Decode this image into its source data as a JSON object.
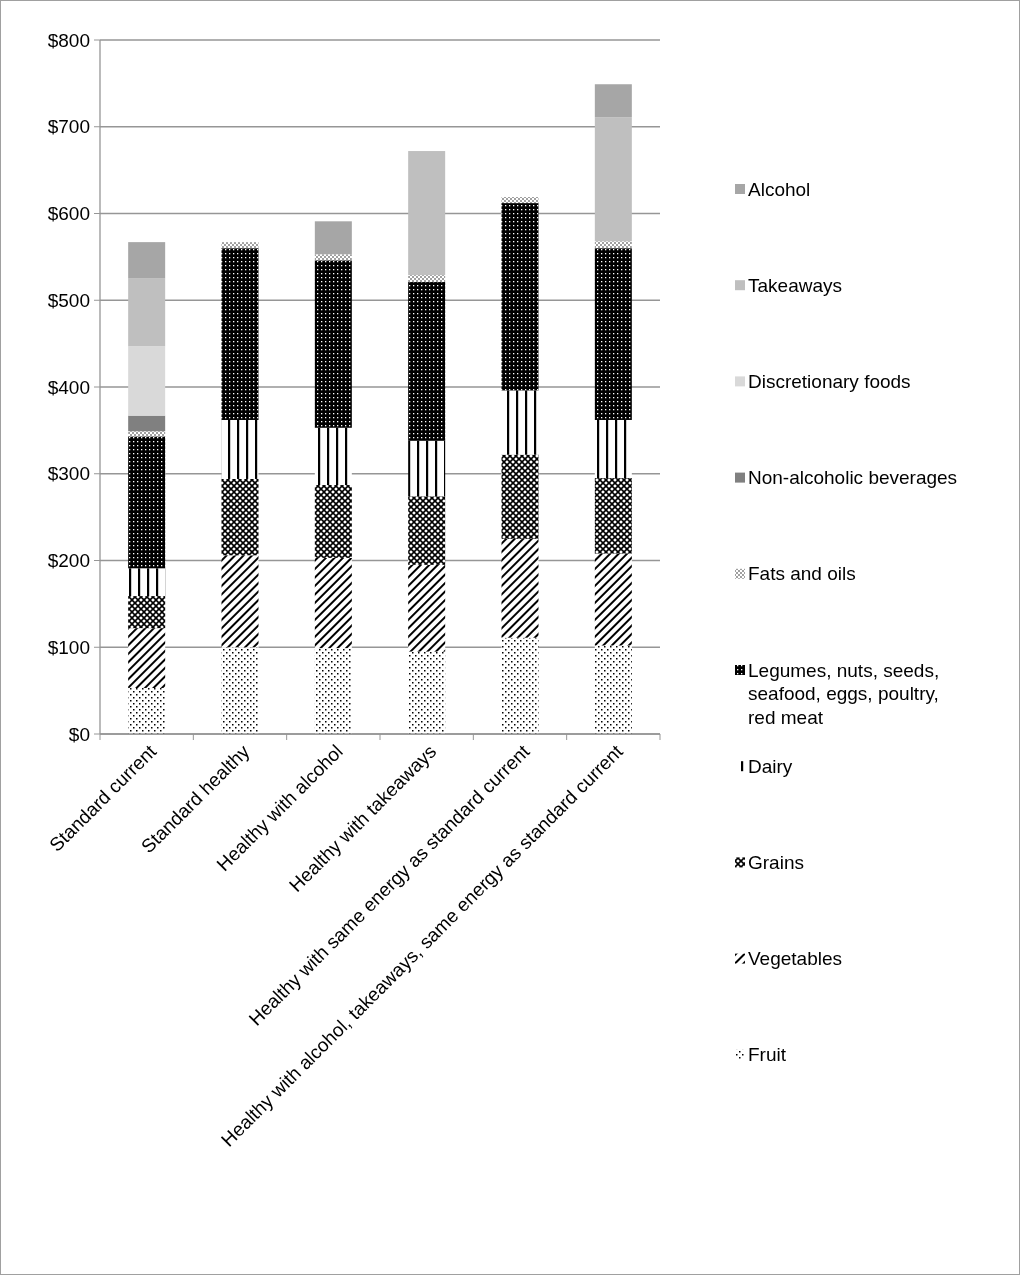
{
  "chart_data": {
    "type": "bar",
    "stacked": true,
    "categories": [
      "Standard current",
      "Standard healthy",
      "Healthy with alcohol",
      "Healthy with takeaways",
      "Healthy with same energy as standard current",
      "Healthy with alcohol, takeaways, same energy as standard current"
    ],
    "series": [
      {
        "name": "Fruit",
        "color": "#000000",
        "values": [
          53,
          100,
          99,
          95,
          111,
          102
        ]
      },
      {
        "name": "Vegetables",
        "color": "#000000",
        "values": [
          69,
          106,
          104,
          100,
          114,
          106
        ]
      },
      {
        "name": "Grains",
        "color": "#000000",
        "values": [
          37,
          88,
          84,
          79,
          97,
          87
        ]
      },
      {
        "name": "Dairy",
        "color": "#000000",
        "values": [
          32,
          68,
          66,
          64,
          74,
          67
        ]
      },
      {
        "name": "Legumes, nuts, seeds, seafood, eggs, poultry, red meat",
        "color": "#000000",
        "values": [
          152,
          198,
          193,
          183,
          216,
          198
        ]
      },
      {
        "name": "Fats and oils",
        "color": "#a0a0a0",
        "values": [
          6,
          7,
          7,
          8,
          7,
          8
        ]
      },
      {
        "name": "Non-alcoholic beverages",
        "color": "#808080",
        "values": [
          18,
          null,
          null,
          null,
          null,
          null
        ]
      },
      {
        "name": "Discretionary foods",
        "color": "#d9d9d9",
        "values": [
          80,
          null,
          null,
          null,
          null,
          null
        ]
      },
      {
        "name": "Takeaways",
        "color": "#bfbfbf",
        "values": [
          78,
          null,
          null,
          143,
          null,
          143
        ]
      },
      {
        "name": "Alcohol",
        "color": "#a6a6a6",
        "values": [
          42,
          null,
          38,
          null,
          null,
          38
        ]
      }
    ],
    "ylim": [
      0,
      800
    ],
    "yticks": [
      {
        "value": 0,
        "label": "$0"
      },
      {
        "value": 100,
        "label": "$100"
      },
      {
        "value": 200,
        "label": "$200"
      },
      {
        "value": 300,
        "label": "$300"
      },
      {
        "value": 400,
        "label": "$400"
      },
      {
        "value": 500,
        "label": "$500"
      },
      {
        "value": 600,
        "label": "$600"
      },
      {
        "value": 700,
        "label": "$700"
      },
      {
        "value": 800,
        "label": "$800"
      }
    ],
    "grid": "y",
    "legend": "right"
  }
}
